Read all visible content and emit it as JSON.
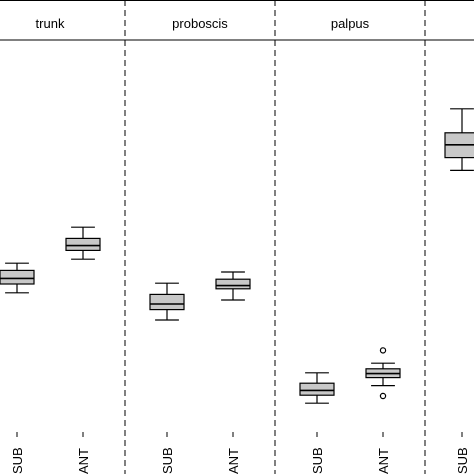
{
  "chart_data": {
    "type": "boxplot",
    "panels": [
      "trunk",
      "proboscis",
      "palpus",
      ""
    ],
    "categories": [
      "SUB",
      "ANT"
    ],
    "boxes": [
      {
        "panel": "trunk",
        "category": "SUB",
        "whisker_low": 4.4,
        "q1": 5.5,
        "median": 6.2,
        "q3": 7.2,
        "whisker_high": 8.1,
        "outliers": []
      },
      {
        "panel": "trunk",
        "category": "ANT",
        "whisker_low": 8.6,
        "q1": 9.7,
        "median": 10.3,
        "q3": 11.2,
        "whisker_high": 12.6,
        "outliers": []
      },
      {
        "panel": "proboscis",
        "category": "SUB",
        "whisker_low": 1.0,
        "q1": 2.3,
        "median": 3.0,
        "q3": 4.2,
        "whisker_high": 5.6,
        "outliers": []
      },
      {
        "panel": "proboscis",
        "category": "ANT",
        "whisker_low": 3.5,
        "q1": 4.9,
        "median": 5.3,
        "q3": 6.1,
        "whisker_high": 7.0,
        "outliers": []
      },
      {
        "panel": "palpus",
        "category": "SUB",
        "whisker_low": -9.4,
        "q1": -8.4,
        "median": -7.8,
        "q3": -6.9,
        "whisker_high": -5.6,
        "outliers": []
      },
      {
        "panel": "palpus",
        "category": "ANT",
        "whisker_low": -7.2,
        "q1": -6.2,
        "median": -5.7,
        "q3": -5.1,
        "whisker_high": -4.4,
        "outliers": [
          -2.8,
          -8.5
        ]
      },
      {
        "panel": "",
        "category": "SUB",
        "whisker_low": 19.7,
        "q1": 21.3,
        "median": 22.9,
        "q3": 24.4,
        "whisker_high": 27.4,
        "outliers": []
      }
    ],
    "ylim": [
      -13,
      36
    ],
    "grid": false,
    "legend": "none"
  }
}
